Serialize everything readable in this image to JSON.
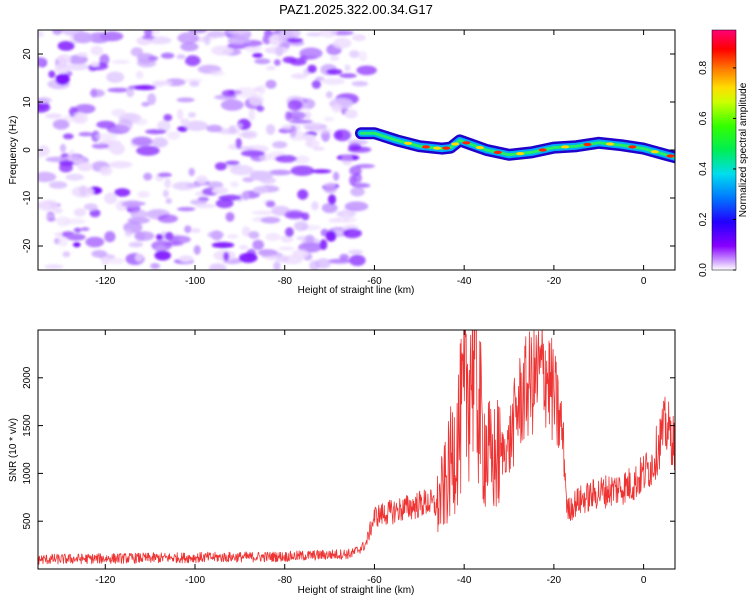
{
  "title": "PAZ1.2025.322.00.34.G17",
  "chart_data": [
    {
      "type": "heatmap",
      "title": "PAZ1.2025.322.00.34.G17",
      "xlabel": "Height of straight line (km)",
      "ylabel": "Frequency (Hz)",
      "xlim": [
        -135,
        7
      ],
      "ylim": [
        -25,
        25
      ],
      "xticks": [
        -120,
        -100,
        -80,
        -60,
        -40,
        -20,
        0
      ],
      "yticks": [
        -20,
        -10,
        0,
        10,
        20
      ],
      "noise_region_x": [
        -135,
        -63
      ],
      "signal_ridge": {
        "x": [
          -63,
          -60,
          -55,
          -50,
          -47,
          -45,
          -43,
          -41,
          -38,
          -35,
          -30,
          -25,
          -20,
          -15,
          -10,
          -5,
          0,
          5,
          7
        ],
        "frequency": [
          3.5,
          3.5,
          2,
          0.8,
          0.5,
          0.3,
          0.5,
          2,
          1,
          0,
          -1,
          -0.5,
          0.5,
          0.8,
          1.5,
          1,
          0.3,
          -1,
          -1.5
        ]
      },
      "colorbar": {
        "label": "Normalized spectral amplitude",
        "range": [
          0,
          0.95
        ],
        "ticks": [
          "0.0",
          "0.2",
          "0.4",
          "0.6",
          "0.8"
        ],
        "colormap": "rainbow"
      }
    },
    {
      "type": "line",
      "xlabel": "Height of straight line (km)",
      "ylabel": "SNR (10 * v/v)",
      "xlim": [
        -135,
        7
      ],
      "ylim": [
        0,
        2500
      ],
      "xticks": [
        -120,
        -100,
        -80,
        -60,
        -40,
        -20,
        0
      ],
      "yticks": [
        500,
        1000,
        1500,
        2000
      ],
      "series": [
        {
          "name": "SNR",
          "color": "#ee3333",
          "x": [
            -135,
            -120,
            -100,
            -80,
            -65,
            -62,
            -60,
            -56,
            -52,
            -48,
            -46,
            -44,
            -42,
            -40,
            -38,
            -36,
            -34,
            -32,
            -30,
            -28,
            -26,
            -24,
            -22,
            -20,
            -18,
            -17,
            -15,
            -10,
            -5,
            -2,
            0,
            2,
            4,
            5,
            7
          ],
          "y": [
            100,
            110,
            120,
            130,
            160,
            250,
            550,
            600,
            650,
            700,
            650,
            900,
            1300,
            1700,
            2300,
            1400,
            1100,
            1200,
            1300,
            1700,
            1900,
            2000,
            2100,
            1800,
            1400,
            600,
            700,
            800,
            850,
            900,
            1000,
            1100,
            1400,
            1500,
            1300
          ]
        }
      ]
    }
  ]
}
